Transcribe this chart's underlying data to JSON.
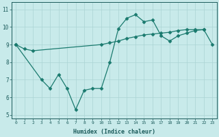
{
  "xlabel": "Humidex (Indice chaleur)",
  "x": [
    0,
    1,
    2,
    3,
    4,
    5,
    6,
    7,
    8,
    9,
    10,
    11,
    12,
    13,
    14,
    15,
    16,
    17,
    18,
    19,
    20,
    21,
    22,
    23
  ],
  "line1_x": [
    0,
    1,
    2,
    10,
    11,
    12,
    13,
    14,
    15,
    16,
    17,
    18,
    19,
    20,
    21,
    22,
    23
  ],
  "line1_y": [
    9.0,
    8.75,
    8.65,
    9.0,
    9.1,
    9.2,
    9.35,
    9.45,
    9.55,
    9.6,
    9.65,
    9.7,
    9.8,
    9.85,
    9.85,
    9.85,
    9.0
  ],
  "line2_x": [
    0,
    3,
    4,
    5,
    6,
    7,
    8,
    9,
    10,
    11,
    12,
    13,
    14,
    15,
    16,
    17,
    18,
    19,
    20,
    21,
    22
  ],
  "line2_y": [
    9.0,
    7.0,
    6.5,
    7.3,
    6.5,
    5.3,
    6.4,
    6.5,
    6.5,
    8.0,
    9.9,
    10.5,
    10.7,
    10.3,
    10.4,
    9.5,
    9.2,
    9.5,
    9.65,
    9.8,
    9.85
  ],
  "ylim": [
    4.8,
    11.4
  ],
  "xlim": [
    -0.5,
    23.5
  ],
  "yticks": [
    5,
    6,
    7,
    8,
    9,
    10,
    11
  ],
  "xticks": [
    0,
    1,
    2,
    3,
    4,
    5,
    6,
    7,
    8,
    9,
    10,
    11,
    12,
    13,
    14,
    15,
    16,
    17,
    18,
    19,
    20,
    21,
    22,
    23
  ],
  "line_color": "#1a7a6e",
  "bg_color": "#c8eaea",
  "grid_color": "#aad4d4",
  "marker": "D",
  "markersize": 2.5,
  "linewidth": 0.9
}
